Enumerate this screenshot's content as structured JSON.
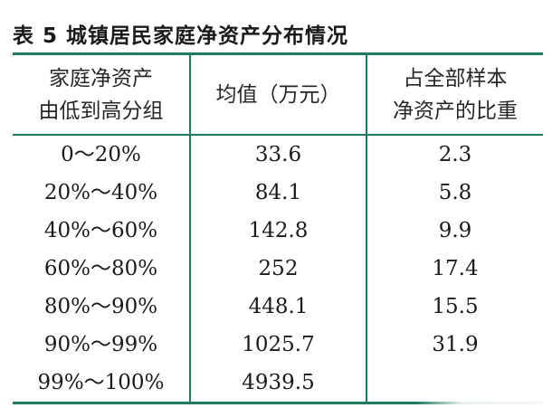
{
  "caption": "表 5  城镇居民家庭净资产分布情况",
  "headers": {
    "col1": [
      "家庭净资产",
      "由低到高分组"
    ],
    "col2": [
      "均值（万元）"
    ],
    "col3": [
      "占全部样本",
      "净资产的比重"
    ]
  },
  "rows": [
    {
      "group": "0～20%",
      "mean": "33.6",
      "share": "2.3"
    },
    {
      "group": "20%～40%",
      "mean": "84.1",
      "share": "5.8"
    },
    {
      "group": "40%～60%",
      "mean": "142.8",
      "share": "9.9"
    },
    {
      "group": "60%～80%",
      "mean": "252",
      "share": "17.4"
    },
    {
      "group": "80%～90%",
      "mean": "448.1",
      "share": "15.5"
    },
    {
      "group": "90%～99%",
      "mean": "1025.7",
      "share": "31.9"
    },
    {
      "group": "99%～100%",
      "mean": "4939.5",
      "share": ""
    }
  ],
  "colors": {
    "rule": "#1f7a62",
    "text": "#1a1a1a"
  }
}
